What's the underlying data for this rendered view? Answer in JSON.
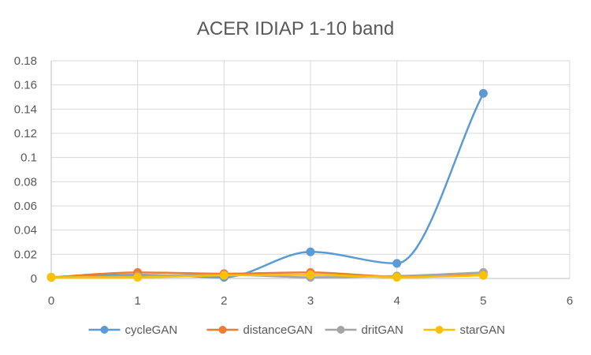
{
  "chart_data": {
    "type": "line",
    "title": "ACER IDIAP 1-10 band",
    "xlabel": "",
    "ylabel": "",
    "xlim": [
      0,
      6
    ],
    "ylim": [
      0,
      0.18
    ],
    "x_ticks": [
      0,
      1,
      2,
      3,
      4,
      5,
      6
    ],
    "y_ticks": [
      0,
      0.02,
      0.04,
      0.06,
      0.08,
      0.1,
      0.12,
      0.14,
      0.16,
      0.18
    ],
    "x_tick_labels": [
      "0",
      "1",
      "2",
      "3",
      "4",
      "5",
      "6"
    ],
    "y_tick_labels": [
      "0",
      "0.02",
      "0.04",
      "0.06",
      "0.08",
      "0.1",
      "0.12",
      "0.14",
      "0.16",
      "0.18"
    ],
    "grid": true,
    "smooth": true,
    "legend_position": "bottom",
    "x": [
      0,
      1,
      2,
      3,
      4,
      5
    ],
    "series": [
      {
        "name": "cycleGAN",
        "color": "#5B9BD5",
        "values": [
          0.001,
          0.003,
          0.001,
          0.022,
          0.0125,
          0.153
        ]
      },
      {
        "name": "distanceGAN",
        "color": "#ED7D31",
        "values": [
          0.001,
          0.005,
          0.004,
          0.005,
          0.0015,
          0.003
        ]
      },
      {
        "name": "dritGAN",
        "color": "#A5A5A5",
        "values": [
          0.001,
          0.002,
          0.003,
          0.001,
          0.002,
          0.005
        ]
      },
      {
        "name": "starGAN",
        "color": "#FFC000",
        "values": [
          0.001,
          0.001,
          0.0025,
          0.003,
          0.001,
          0.0025
        ]
      }
    ]
  }
}
